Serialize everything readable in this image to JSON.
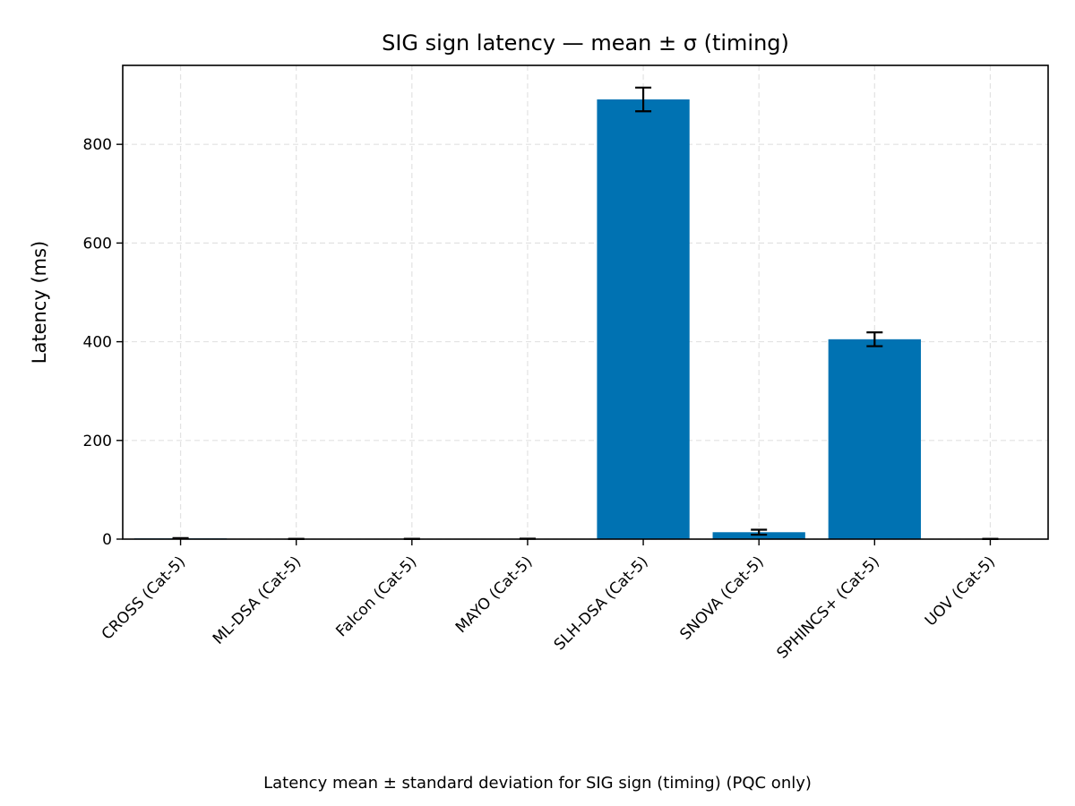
{
  "chart_data": {
    "type": "bar",
    "title": "SIG sign latency — mean ± σ (timing)",
    "xlabel": "",
    "ylabel": "Latency (ms)",
    "categories": [
      "CROSS (Cat-5)",
      "ML-DSA (Cat-5)",
      "Falcon (Cat-5)",
      "MAYO (Cat-5)",
      "SLH-DSA (Cat-5)",
      "SNOVA (Cat-5)",
      "SPHINCS+ (Cat-5)",
      "UOV (Cat-5)"
    ],
    "values": [
      1.5,
      0.3,
      0.5,
      0.8,
      891,
      14,
      405,
      0.4
    ],
    "errors": [
      0.5,
      0.1,
      0.1,
      0.2,
      24,
      5,
      14,
      0.1
    ],
    "ylim": [
      0,
      960
    ],
    "yticks": [
      0,
      200,
      400,
      600,
      800
    ],
    "grid": true,
    "bar_color": "#0072b2",
    "caption": "Latency mean ± standard deviation for SIG sign (timing) (PQC only)"
  }
}
